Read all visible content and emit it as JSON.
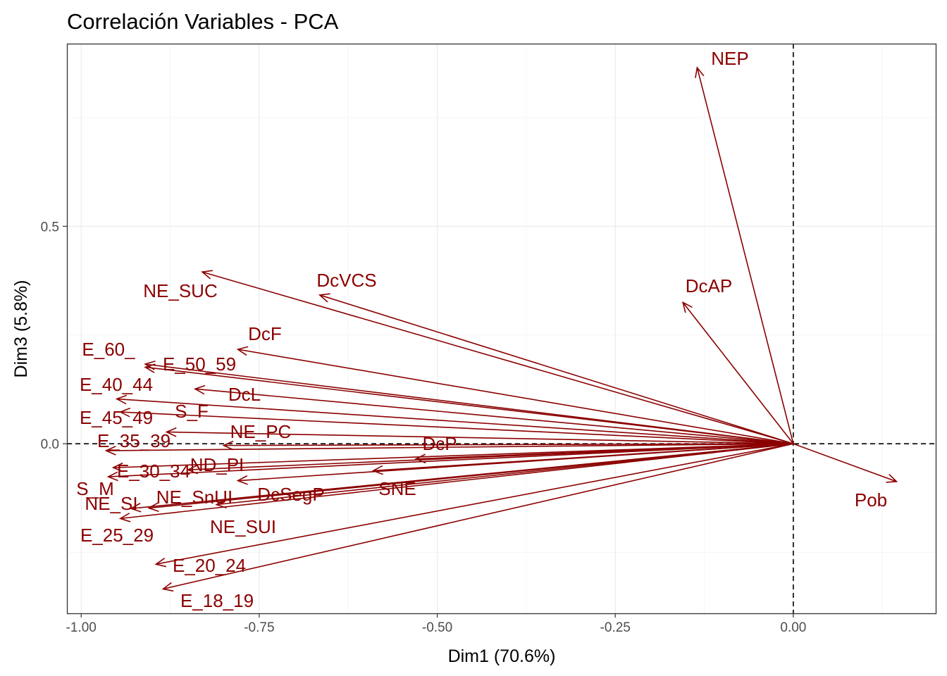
{
  "chart_data": {
    "type": "pca_variable_correlation",
    "title": "Correlación Variables - PCA",
    "xlabel": "Dim1 (70.6%)",
    "ylabel": "Dim3 (5.8%)",
    "xlim": [
      -1.02,
      0.2
    ],
    "ylim": [
      -0.39,
      0.92
    ],
    "x_ticks": [
      -1.0,
      -0.75,
      -0.5,
      -0.25,
      0.0
    ],
    "x_tick_labels": [
      "-1.00",
      "-0.75",
      "-0.50",
      "-0.25",
      "0.00"
    ],
    "y_ticks": [
      0.0,
      0.5
    ],
    "y_tick_labels": [
      "0.0",
      "0.5"
    ],
    "grid": true,
    "reference_lines": {
      "x": 0,
      "y": 0,
      "style": "dashed"
    },
    "arrow_color": "#8b0000",
    "variables": [
      {
        "name": "NEP",
        "x": -0.135,
        "y": 0.865
      },
      {
        "name": "DcAP",
        "x": -0.155,
        "y": 0.325
      },
      {
        "name": "Pob",
        "x": 0.145,
        "y": -0.087
      },
      {
        "name": "NE_SUC",
        "x": -0.83,
        "y": 0.395
      },
      {
        "name": "DcVCS",
        "x": -0.665,
        "y": 0.342
      },
      {
        "name": "DcF",
        "x": -0.78,
        "y": 0.217
      },
      {
        "name": "E_60_",
        "x": -0.91,
        "y": 0.183
      },
      {
        "name": "E_50_59",
        "x": -0.91,
        "y": 0.176
      },
      {
        "name": "E_40_44",
        "x": -0.95,
        "y": 0.103
      },
      {
        "name": "DcL",
        "x": -0.84,
        "y": 0.126
      },
      {
        "name": "E_45_49",
        "x": -0.945,
        "y": 0.073
      },
      {
        "name": "S_F",
        "x": -0.88,
        "y": 0.027
      },
      {
        "name": "NE_PC",
        "x": -0.8,
        "y": -0.004
      },
      {
        "name": "E_35_39",
        "x": -0.965,
        "y": -0.016
      },
      {
        "name": "DcP",
        "x": -0.53,
        "y": -0.035
      },
      {
        "name": "ND_PI",
        "x": -0.85,
        "y": -0.06
      },
      {
        "name": "E_30_34",
        "x": -0.955,
        "y": -0.055
      },
      {
        "name": "S_M",
        "x": -0.962,
        "y": -0.076
      },
      {
        "name": "SNE",
        "x": -0.59,
        "y": -0.062
      },
      {
        "name": "DcSegP",
        "x": -0.78,
        "y": -0.085
      },
      {
        "name": "NE_SnUI",
        "x": -0.81,
        "y": -0.14
      },
      {
        "name": "NE_SI",
        "x": -0.93,
        "y": -0.149
      },
      {
        "name": "NE_SUI",
        "x": -0.905,
        "y": -0.148
      },
      {
        "name": "E_25_29",
        "x": -0.945,
        "y": -0.172
      },
      {
        "name": "E_20_24",
        "x": -0.895,
        "y": -0.277
      },
      {
        "name": "E_18_19",
        "x": -0.885,
        "y": -0.334
      }
    ]
  }
}
